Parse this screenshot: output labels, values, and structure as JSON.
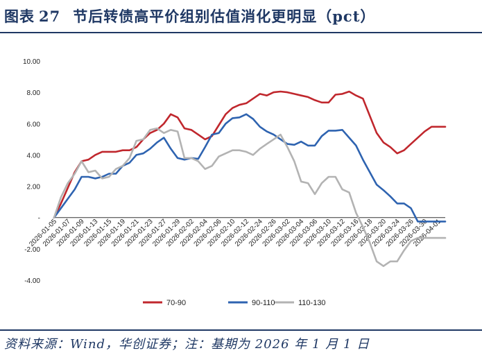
{
  "header": {
    "label": "图表",
    "number": "27",
    "text": "节后转债高平价组别估值消化更明显（pct）"
  },
  "footer": {
    "source": "资料来源：Wind，华创证券；注：基期为 2026 年 1 月 1 日"
  },
  "chart_data": {
    "type": "line",
    "y_ticks": [
      "10.00",
      "8.00",
      "6.00",
      "4.00",
      "2.00",
      "-",
      "-2.00",
      "-4.00"
    ],
    "y_tick_values": [
      10,
      8,
      6,
      4,
      2,
      0,
      -2,
      -4
    ],
    "ylim": [
      -4,
      10
    ],
    "x_tick_labels": [
      "2026-01-05",
      "2026-01-07",
      "2026-01-09",
      "2026-01-13",
      "2026-01-15",
      "2026-01-19",
      "2026-01-21",
      "2026-01-23",
      "2026-01-27",
      "2026-01-29",
      "2026-02-02",
      "2026-02-04",
      "2026-02-06",
      "2026-02-10",
      "2026-02-12",
      "2026-02-24",
      "2026-02-26",
      "2026-03-02",
      "2026-03-04",
      "2026-03-06",
      "2026-03-10",
      "2026-03-12",
      "2026-03-16",
      "2026-03-18",
      "2026-03-20",
      "2026-03-24",
      "2026-03-26",
      "2026-03-30",
      "2026-04-01"
    ],
    "num_points": 58,
    "legend_position": "bottom",
    "series": [
      {
        "name": "70-90",
        "color": "#c0272d",
        "values": [
          0.0,
          0.9,
          1.9,
          2.9,
          3.6,
          3.7,
          4.0,
          4.2,
          4.2,
          4.2,
          4.3,
          4.3,
          4.5,
          5.0,
          5.4,
          5.6,
          6.0,
          6.6,
          6.4,
          5.7,
          5.6,
          5.3,
          5.0,
          5.2,
          5.9,
          6.6,
          7.0,
          7.2,
          7.3,
          7.6,
          7.9,
          7.8,
          8.0,
          8.05,
          8.0,
          7.9,
          7.8,
          7.7,
          7.5,
          7.35,
          7.35,
          7.85,
          7.9,
          8.05,
          7.8,
          7.6,
          6.5,
          5.4,
          4.8,
          4.5,
          4.1,
          4.3,
          4.7,
          5.1,
          5.5,
          5.8,
          5.8,
          5.8
        ]
      },
      {
        "name": "90-110",
        "color": "#2e63b0",
        "values": [
          0.0,
          0.6,
          1.2,
          1.8,
          2.6,
          2.6,
          2.5,
          2.6,
          2.8,
          2.8,
          3.3,
          3.5,
          4.0,
          4.1,
          4.4,
          4.8,
          5.1,
          4.4,
          3.8,
          3.7,
          3.8,
          3.75,
          4.5,
          5.3,
          5.4,
          6.0,
          6.35,
          6.4,
          6.6,
          6.3,
          5.8,
          5.5,
          5.3,
          5.0,
          4.7,
          4.65,
          4.85,
          4.6,
          4.6,
          5.2,
          5.55,
          5.55,
          5.6,
          5.1,
          4.6,
          3.7,
          2.9,
          2.1,
          1.75,
          1.35,
          0.9,
          0.9,
          0.6,
          -0.25,
          -0.25,
          -0.25,
          -0.25,
          -0.25
        ]
      },
      {
        "name": "110-130",
        "color": "#b3b3b3",
        "values": [
          0.0,
          1.3,
          2.2,
          2.8,
          3.6,
          2.9,
          3.0,
          2.5,
          2.6,
          3.1,
          3.3,
          3.8,
          4.9,
          5.0,
          5.6,
          5.7,
          5.4,
          5.6,
          5.5,
          3.8,
          3.8,
          3.6,
          3.1,
          3.3,
          3.9,
          4.1,
          4.3,
          4.3,
          4.2,
          4.0,
          4.4,
          4.7,
          5.0,
          5.3,
          4.5,
          3.6,
          2.3,
          2.2,
          1.5,
          2.2,
          2.6,
          2.6,
          1.8,
          1.6,
          0.3,
          -0.6,
          -1.6,
          -2.8,
          -3.1,
          -2.8,
          -2.8,
          -2.1,
          -1.5,
          -1.3,
          -1.3,
          -1.3,
          -1.3,
          -1.3
        ]
      }
    ]
  }
}
